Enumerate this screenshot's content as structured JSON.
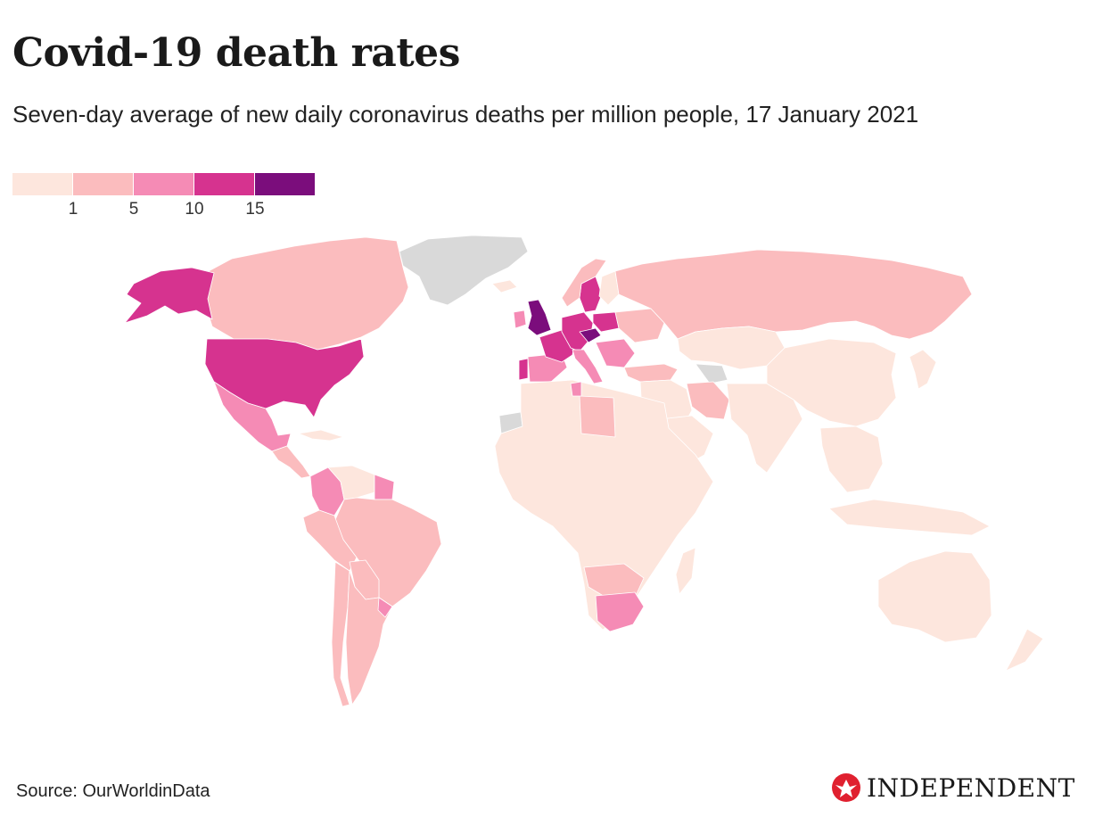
{
  "header": {
    "title": "Covid-19 death rates",
    "subtitle": "Seven-day average of new daily coronavirus deaths per million people, 17 January 2021"
  },
  "legend": {
    "colors": [
      "#fde6dd",
      "#fbbcbe",
      "#f58bb5",
      "#d6338f",
      "#7b0d7c"
    ],
    "tick_labels": [
      "1",
      "5",
      "10",
      "15"
    ],
    "no_data_color": "#d9d9d9"
  },
  "footer": {
    "source": "Source: OurWorldinData",
    "brand": "INDEPENDENT"
  },
  "chart_data": {
    "type": "choropleth",
    "title": "Covid-19 death rates",
    "subtitle": "Seven-day average of new daily coronavirus deaths per million people, 17 January 2021",
    "metric": "New daily deaths per million (7-day average)",
    "bins": [
      {
        "label": "<1",
        "min": 0,
        "max": 1,
        "color": "#fde6dd"
      },
      {
        "label": "1-5",
        "min": 1,
        "max": 5,
        "color": "#fbbcbe"
      },
      {
        "label": "5-10",
        "min": 5,
        "max": 10,
        "color": "#f58bb5"
      },
      {
        "label": "10-15",
        "min": 10,
        "max": 15,
        "color": "#d6338f"
      },
      {
        "label": ">15",
        "min": 15,
        "max": null,
        "color": "#7b0d7c"
      }
    ],
    "regions": [
      {
        "name": "United Kingdom",
        "bin": 4
      },
      {
        "name": "Czechia",
        "bin": 4
      },
      {
        "name": "United States",
        "bin": 3
      },
      {
        "name": "Alaska (US)",
        "bin": 3
      },
      {
        "name": "Sweden",
        "bin": 3
      },
      {
        "name": "Portugal",
        "bin": 3
      },
      {
        "name": "Central Europe",
        "bin": 3
      },
      {
        "name": "Mexico",
        "bin": 2
      },
      {
        "name": "Colombia",
        "bin": 2
      },
      {
        "name": "South Africa",
        "bin": 2
      },
      {
        "name": "Spain",
        "bin": 2
      },
      {
        "name": "Ireland",
        "bin": 2
      },
      {
        "name": "Italy",
        "bin": 2
      },
      {
        "name": "Canada",
        "bin": 1
      },
      {
        "name": "Russia",
        "bin": 1
      },
      {
        "name": "Brazil",
        "bin": 1
      },
      {
        "name": "Argentina",
        "bin": 1
      },
      {
        "name": "Peru",
        "bin": 1
      },
      {
        "name": "Chile",
        "bin": 1
      },
      {
        "name": "Turkey",
        "bin": 1
      },
      {
        "name": "Iran",
        "bin": 1
      },
      {
        "name": "Libya",
        "bin": 1
      },
      {
        "name": "Ukraine",
        "bin": 1
      },
      {
        "name": "Botswana / Namibia",
        "bin": 1
      },
      {
        "name": "China",
        "bin": 0
      },
      {
        "name": "India",
        "bin": 0
      },
      {
        "name": "Australia",
        "bin": 0
      },
      {
        "name": "Africa (most)",
        "bin": 0
      },
      {
        "name": "Southeast Asia",
        "bin": 0
      },
      {
        "name": "Kazakhstan / Central Asia",
        "bin": 0
      },
      {
        "name": "Greenland",
        "bin": null
      },
      {
        "name": "Turkmenistan",
        "bin": null
      },
      {
        "name": "Western Sahara",
        "bin": null
      }
    ]
  }
}
